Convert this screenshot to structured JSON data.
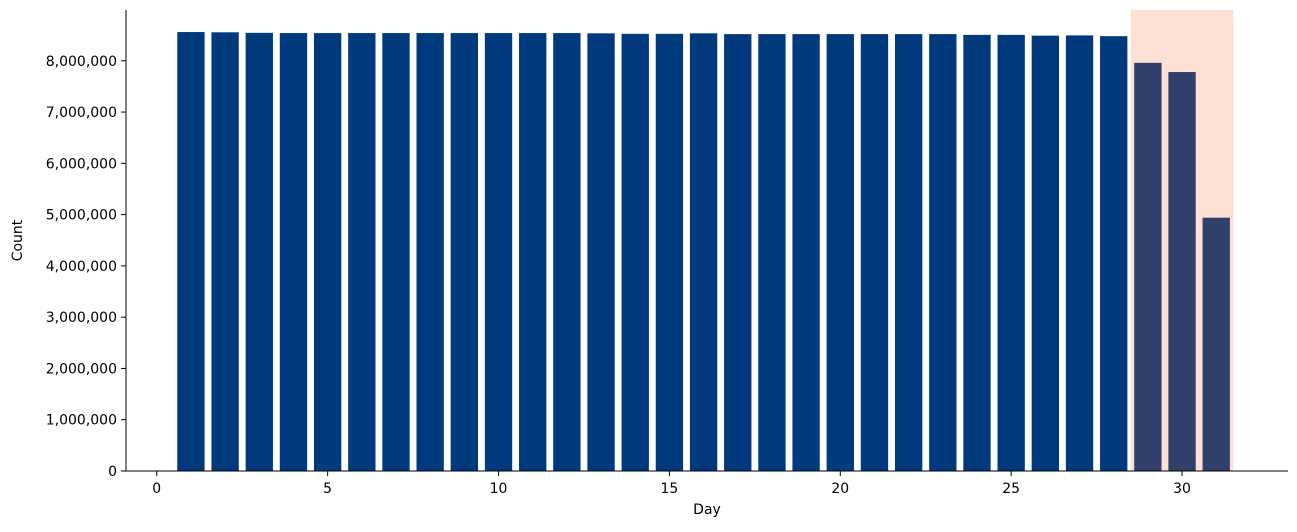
{
  "chart_data": {
    "type": "bar",
    "title": "",
    "xlabel": "Day",
    "ylabel": "Count",
    "x": [
      1,
      2,
      3,
      4,
      5,
      6,
      7,
      8,
      9,
      10,
      11,
      12,
      13,
      14,
      15,
      16,
      17,
      18,
      19,
      20,
      21,
      22,
      23,
      24,
      25,
      26,
      27,
      28,
      29,
      30,
      31
    ],
    "values": [
      8560000,
      8555000,
      8545000,
      8540000,
      8540000,
      8540000,
      8540000,
      8540000,
      8540000,
      8540000,
      8540000,
      8540000,
      8535000,
      8525000,
      8525000,
      8535000,
      8520000,
      8520000,
      8520000,
      8520000,
      8520000,
      8520000,
      8520000,
      8505000,
      8505000,
      8490000,
      8495000,
      8480000,
      7960000,
      7780000,
      4940000
    ],
    "xlim": [
      -0.9,
      33.1
    ],
    "ylim": [
      0,
      8990000
    ],
    "x_ticks": [
      0,
      5,
      10,
      15,
      20,
      25,
      30
    ],
    "x_tick_labels": [
      "0",
      "5",
      "10",
      "15",
      "20",
      "25",
      "30"
    ],
    "y_ticks": [
      0,
      1000000,
      2000000,
      3000000,
      4000000,
      5000000,
      6000000,
      7000000,
      8000000
    ],
    "y_tick_labels": [
      "0",
      "1,000,000",
      "2,000,000",
      "3,000,000",
      "4,000,000",
      "5,000,000",
      "6,000,000",
      "7,000,000",
      "8,000,000"
    ],
    "bar_width": 0.8,
    "highlight_span": [
      28.5,
      31.5
    ],
    "colors": {
      "bar": "#003a7d",
      "bar_highlighted": "#31406b",
      "highlight": "#fde0d4",
      "axis": "#000000"
    },
    "grid": false,
    "legend": "none"
  }
}
